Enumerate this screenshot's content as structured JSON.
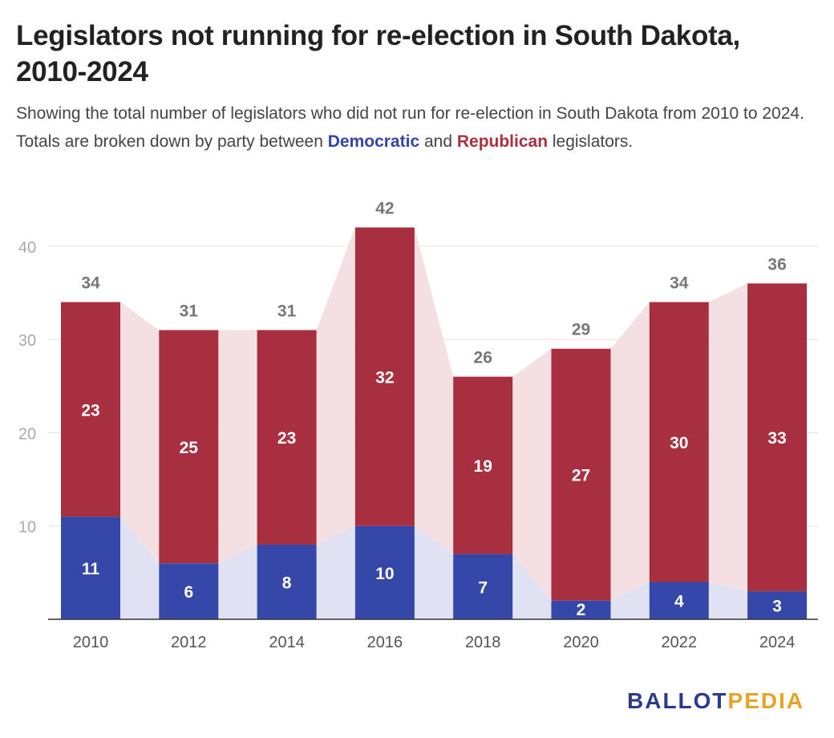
{
  "header": {
    "title": "Legislators not running for re-election in South Dakota, 2010-2024",
    "subtitle_part1": "Showing the total number of legislators who did not run for re-election in South Dakota from 2010 to 2024. Totals are broken down by party between ",
    "subtitle_dem": "Democratic",
    "subtitle_and": " and ",
    "subtitle_rep": "Republican",
    "subtitle_part2": " legislators."
  },
  "logo": {
    "part1": "BALLOT",
    "part2": "PEDIA"
  },
  "colors": {
    "democratic": "#3547a8",
    "republican": "#a82f3f",
    "dem_area": "#e0e2f3",
    "rep_area": "#f4dfe2",
    "grid": "#e3e3e3",
    "tick": "#aaaaaa",
    "total_label": "#777777"
  },
  "chart_data": {
    "type": "bar",
    "stacked": true,
    "categories": [
      "2010",
      "2012",
      "2014",
      "2016",
      "2018",
      "2020",
      "2022",
      "2024"
    ],
    "series": [
      {
        "name": "Democratic",
        "values": [
          11,
          6,
          8,
          10,
          7,
          2,
          4,
          3
        ]
      },
      {
        "name": "Republican",
        "values": [
          23,
          25,
          23,
          32,
          19,
          27,
          30,
          33
        ]
      }
    ],
    "totals": [
      34,
      31,
      31,
      42,
      26,
      29,
      34,
      36
    ],
    "y_ticks": [
      10,
      20,
      30,
      40
    ],
    "ylim": [
      0,
      45
    ],
    "grid": true,
    "legend": "none",
    "title": "Legislators not running for re-election in South Dakota, 2010-2024",
    "xlabel": "",
    "ylabel": ""
  }
}
